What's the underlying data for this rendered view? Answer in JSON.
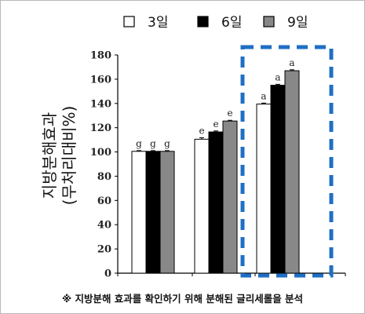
{
  "chart_data": {
    "type": "bar",
    "ylabel_lines": [
      "지방분해효과",
      "(무처리대비%)"
    ],
    "yticks": [
      0,
      20,
      40,
      60,
      80,
      100,
      120,
      140,
      160,
      180
    ],
    "ylim": [
      0,
      180
    ],
    "groups": 3,
    "series": [
      {
        "name": "3일",
        "color": "#ffffff",
        "values": [
          100.5,
          110.5,
          139.5
        ],
        "errors": [
          0.6,
          1.2,
          0.8
        ]
      },
      {
        "name": "6일",
        "color": "#000000",
        "values": [
          100.5,
          116.5,
          155.0
        ],
        "errors": [
          0.6,
          0.8,
          0.8
        ]
      },
      {
        "name": "9일",
        "color": "#888888",
        "values": [
          100.5,
          125.5,
          167.0
        ],
        "errors": [
          0.6,
          0.6,
          0.8
        ]
      }
    ],
    "significance": [
      [
        "g",
        "g",
        "g"
      ],
      [
        "e",
        "e",
        "e"
      ],
      [
        "a",
        "a",
        "a"
      ]
    ],
    "highlight_group": 2,
    "highlight_color": "#1f6fc4",
    "legend_position": "top",
    "grid": false
  },
  "footnote": "※ 지방분해 효과를 확인하기 위해 분해된 글리세롤을 분석"
}
